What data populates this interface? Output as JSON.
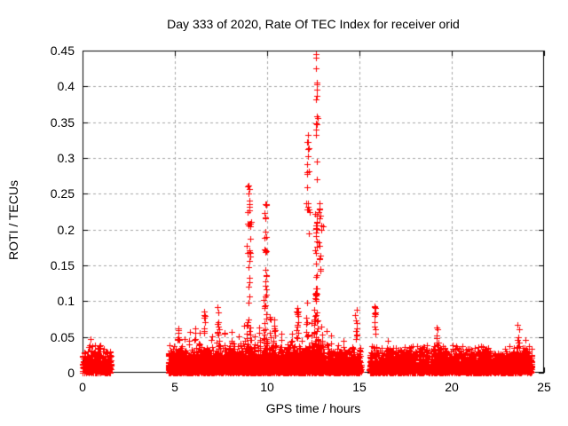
{
  "chart_data": {
    "type": "scatter",
    "title": "Day 333 of 2020, Rate Of TEC Index for receiver orid",
    "xlabel": "GPS time / hours",
    "ylabel": "ROTI / TECUs",
    "xlim": [
      0,
      25
    ],
    "ylim": [
      0,
      0.45
    ],
    "x_tick_values": [
      0,
      5,
      10,
      15,
      20,
      25
    ],
    "x_tick_labels": [
      "0",
      "5",
      "10",
      "15",
      "20",
      "25"
    ],
    "y_tick_values": [
      0,
      0.05,
      0.1,
      0.15,
      0.2,
      0.25,
      0.3,
      0.35,
      0.4,
      0.45
    ],
    "y_tick_labels": [
      "0",
      "0.05",
      "0.1",
      "0.15",
      "0.2",
      "0.25",
      "0.3",
      "0.35",
      "0.4",
      "0.45"
    ],
    "grid": true,
    "grid_color": "#a6a6a6",
    "border_color": "#000000",
    "marker": "plus",
    "marker_color": "#ff0000",
    "marker_size": 7,
    "seed": 7,
    "base_cap": 0.03,
    "base_scale": 0.011,
    "segments": [
      [
        0.0,
        1.55,
        260
      ],
      [
        4.65,
        15.08,
        340
      ],
      [
        15.55,
        24.35,
        300
      ]
    ],
    "bumps": [
      [
        0.4,
        0.3,
        0.045,
        16
      ],
      [
        1.0,
        0.35,
        0.04,
        14
      ],
      [
        4.85,
        0.15,
        0.04,
        14
      ],
      [
        5.2,
        0.15,
        0.065,
        16
      ],
      [
        5.5,
        0.2,
        0.055,
        16
      ],
      [
        5.8,
        0.15,
        0.07,
        14
      ],
      [
        6.1,
        0.15,
        0.07,
        16
      ],
      [
        6.35,
        0.2,
        0.08,
        20
      ],
      [
        6.6,
        0.15,
        0.088,
        16
      ],
      [
        7.0,
        0.2,
        0.058,
        16
      ],
      [
        7.35,
        0.15,
        0.1,
        18
      ],
      [
        7.7,
        0.2,
        0.065,
        16
      ],
      [
        8.1,
        0.25,
        0.062,
        22
      ],
      [
        8.5,
        0.2,
        0.068,
        18
      ],
      [
        8.75,
        0.15,
        0.075,
        14
      ],
      [
        9.0,
        0.22,
        0.115,
        48
      ],
      [
        9.3,
        0.15,
        0.07,
        14
      ],
      [
        9.6,
        0.15,
        0.085,
        16
      ],
      [
        9.9,
        0.18,
        0.12,
        40
      ],
      [
        10.15,
        0.15,
        0.09,
        18
      ],
      [
        10.4,
        0.2,
        0.078,
        22
      ],
      [
        10.75,
        0.25,
        0.068,
        24
      ],
      [
        11.05,
        0.2,
        0.06,
        18
      ],
      [
        11.35,
        0.15,
        0.065,
        14
      ],
      [
        11.65,
        0.15,
        0.1,
        24
      ],
      [
        11.9,
        0.15,
        0.075,
        16
      ],
      [
        12.15,
        0.15,
        0.1,
        26
      ],
      [
        12.4,
        0.15,
        0.085,
        20
      ],
      [
        12.65,
        0.2,
        0.16,
        60
      ],
      [
        12.95,
        0.15,
        0.09,
        18
      ],
      [
        13.2,
        0.15,
        0.08,
        18
      ],
      [
        13.5,
        0.15,
        0.06,
        14
      ],
      [
        13.8,
        0.2,
        0.05,
        14
      ],
      [
        14.15,
        0.2,
        0.055,
        14
      ],
      [
        14.5,
        0.15,
        0.045,
        12
      ],
      [
        14.8,
        0.1,
        0.085,
        14
      ],
      [
        15.85,
        0.1,
        0.085,
        14
      ],
      [
        16.15,
        0.15,
        0.06,
        12
      ],
      [
        16.5,
        0.2,
        0.06,
        16
      ],
      [
        16.9,
        0.25,
        0.052,
        16
      ],
      [
        17.3,
        0.25,
        0.055,
        18
      ],
      [
        17.7,
        0.2,
        0.05,
        14
      ],
      [
        18.1,
        0.25,
        0.05,
        16
      ],
      [
        18.6,
        0.25,
        0.045,
        14
      ],
      [
        19.0,
        0.2,
        0.05,
        14
      ],
      [
        19.25,
        0.12,
        0.062,
        10
      ],
      [
        19.7,
        0.3,
        0.045,
        16
      ],
      [
        20.2,
        0.25,
        0.042,
        14
      ],
      [
        20.7,
        0.25,
        0.05,
        18
      ],
      [
        21.1,
        0.2,
        0.048,
        14
      ],
      [
        21.45,
        0.15,
        0.055,
        14
      ],
      [
        21.9,
        0.25,
        0.045,
        14
      ],
      [
        22.4,
        0.3,
        0.042,
        16
      ],
      [
        22.9,
        0.2,
        0.04,
        12
      ],
      [
        23.3,
        0.15,
        0.045,
        10
      ],
      [
        23.65,
        0.1,
        0.058,
        12
      ],
      [
        24.0,
        0.2,
        0.05,
        14
      ]
    ],
    "strings": [
      [
        9.0,
        0.1,
        0.1,
        0.265,
        24,
        1
      ],
      [
        9.88,
        0.08,
        0.1,
        0.238,
        18,
        1
      ],
      [
        12.2,
        0.07,
        0.18,
        0.335,
        12,
        1
      ],
      [
        12.65,
        0.06,
        0.1,
        0.42,
        34,
        1.5
      ],
      [
        12.85,
        0.07,
        0.1,
        0.24,
        14,
        1
      ],
      [
        11.65,
        0.06,
        0.06,
        0.1,
        8,
        1
      ],
      [
        7.35,
        0.05,
        0.05,
        0.105,
        8,
        1
      ],
      [
        14.8,
        0.05,
        0.04,
        0.092,
        8,
        1
      ],
      [
        15.85,
        0.05,
        0.04,
        0.095,
        9,
        1
      ],
      [
        19.2,
        0.04,
        0.035,
        0.07,
        7,
        1
      ],
      [
        23.6,
        0.05,
        0.035,
        0.068,
        9,
        1
      ],
      [
        5.2,
        0.04,
        0.03,
        0.065,
        6,
        1
      ],
      [
        6.6,
        0.04,
        0.04,
        0.09,
        7,
        1
      ]
    ],
    "points": [
      [
        0.45,
        0.047
      ],
      [
        12.66,
        0.445
      ],
      [
        12.66,
        0.44
      ],
      [
        12.66,
        0.425
      ],
      [
        12.68,
        0.403
      ],
      [
        12.63,
        0.382
      ],
      [
        12.72,
        0.356
      ],
      [
        12.2,
        0.332
      ],
      [
        12.17,
        0.322
      ],
      [
        12.23,
        0.313
      ],
      [
        12.19,
        0.302
      ],
      [
        12.14,
        0.291
      ],
      [
        12.26,
        0.282
      ],
      [
        12.3,
        0.225
      ],
      [
        8.97,
        0.262
      ],
      [
        9.03,
        0.257
      ],
      [
        9.0,
        0.25
      ],
      [
        9.05,
        0.232
      ],
      [
        8.95,
        0.224
      ],
      [
        9.12,
        0.211
      ],
      [
        9.9,
        0.235
      ],
      [
        9.85,
        0.223
      ],
      [
        9.92,
        0.217
      ],
      [
        13.05,
        0.205
      ],
      [
        12.95,
        0.2
      ]
    ]
  }
}
